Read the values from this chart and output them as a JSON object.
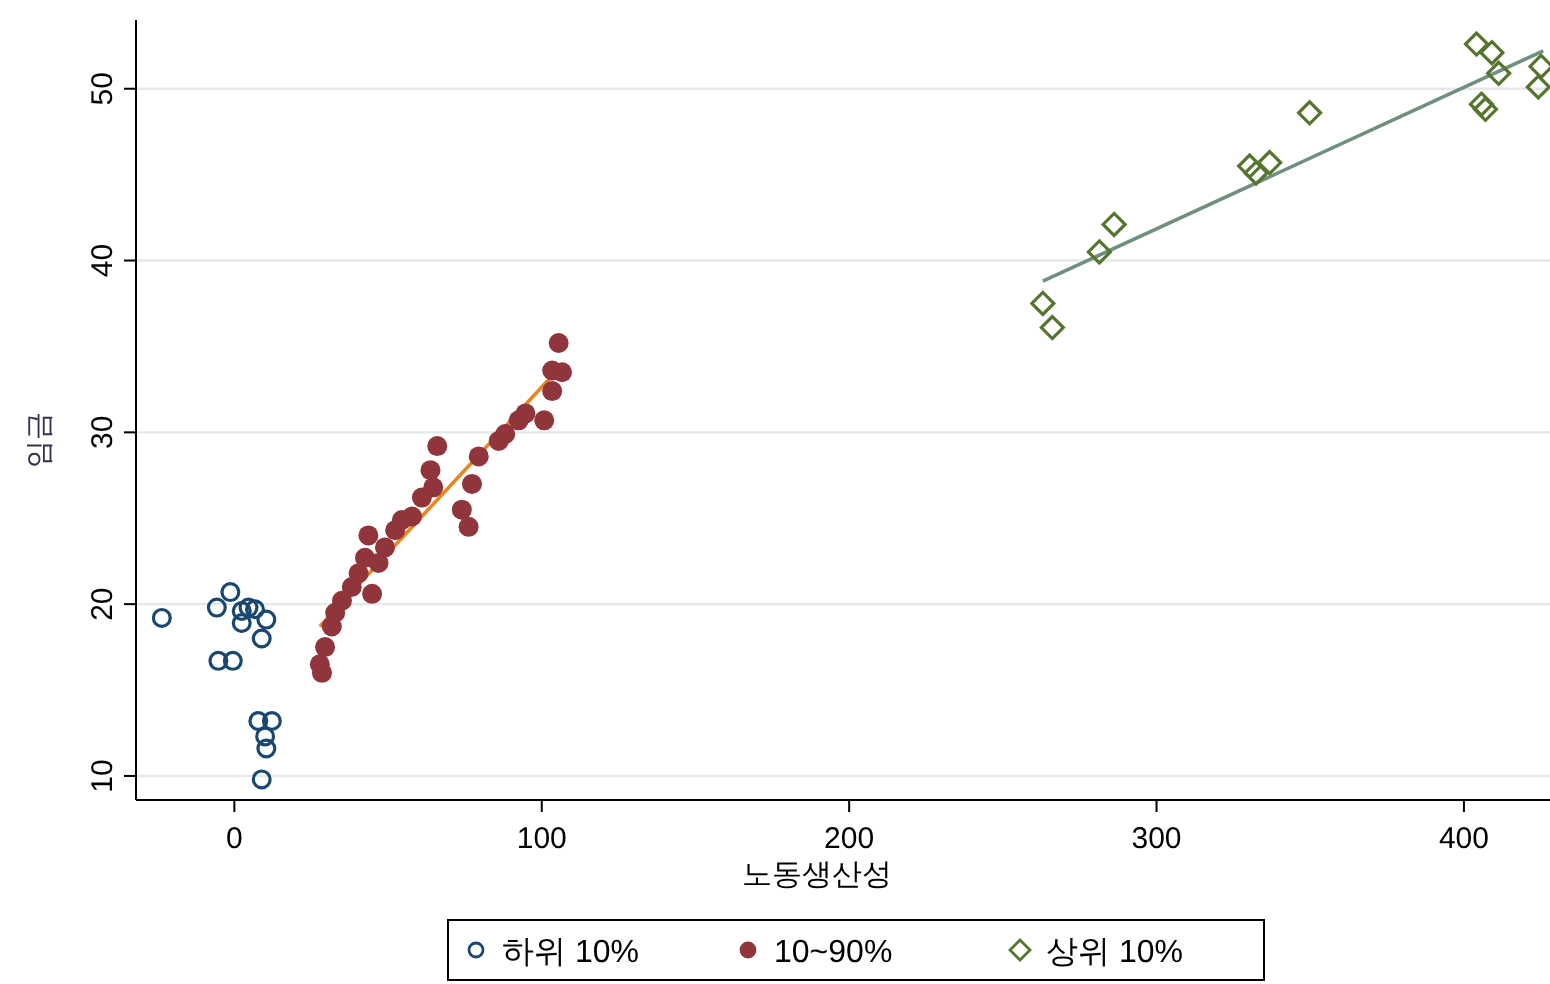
{
  "chart_data": {
    "type": "scatter",
    "xlabel": "노동생산성",
    "ylabel": "임금",
    "xlim": [
      -32,
      428
    ],
    "ylim": [
      8.6,
      54
    ],
    "xticks": [
      0,
      100,
      200,
      300,
      400
    ],
    "yticks": [
      10,
      20,
      30,
      40,
      50
    ],
    "grid": "y",
    "legend": "bottom",
    "series": [
      {
        "name": "하위 10%",
        "color": "#1a476f",
        "marker": "circle",
        "x": [
          -23.6,
          -1.3,
          -5.7,
          2.4,
          4.6,
          6.7,
          2.4,
          10.4,
          8.9,
          -5.2,
          -0.5,
          7.8,
          12.2,
          10.0,
          10.4,
          8.9
        ],
        "values": [
          19.2,
          20.7,
          19.8,
          19.6,
          19.8,
          19.7,
          18.9,
          19.1,
          18.0,
          16.7,
          16.7,
          13.2,
          13.2,
          12.3,
          11.6,
          9.8
        ]
      },
      {
        "name": "10~90%",
        "color": "#90353b",
        "marker": "circle",
        "x": [
          105.5,
          103.4,
          106.6,
          103.4,
          100.8,
          92.5,
          86,
          79.5,
          66,
          63.8,
          64.7,
          61,
          77.3,
          74,
          76.2,
          57.8,
          54.5,
          52.3,
          43.6,
          49,
          42.5,
          46.9,
          40.4,
          38.2,
          44.8,
          35,
          32.8,
          31.7,
          29.5,
          27.8,
          28.5,
          94.7,
          88.1
        ],
        "values": [
          35.2,
          33.6,
          33.5,
          32.4,
          30.7,
          30.7,
          29.5,
          28.6,
          29.2,
          27.8,
          26.8,
          26.2,
          27.0,
          25.5,
          24.5,
          25.1,
          24.9,
          24.3,
          24.0,
          23.3,
          22.7,
          22.4,
          21.8,
          21.0,
          20.6,
          20.2,
          19.5,
          18.7,
          17.5,
          16.5,
          16.0,
          31.1,
          29.9
        ]
      },
      {
        "name": "상위 10%",
        "color": "#55752f",
        "marker": "diamond",
        "x": [
          263,
          266.1,
          281.4,
          286.2,
          330.3,
          332.4,
          336.8,
          349.8,
          404.1,
          409.1,
          411.3,
          405.7,
          407,
          425.1,
          424.2
        ],
        "values": [
          37.5,
          36.1,
          40.5,
          42.1,
          45.5,
          45.1,
          45.7,
          48.6,
          52.6,
          52.1,
          50.9,
          49.1,
          48.8,
          51.3,
          50.1
        ]
      },
      {
        "type": "line",
        "color": "#e8861f",
        "x": [
          27.8,
          105
        ],
        "values": [
          18.7,
          33.6
        ]
      },
      {
        "type": "line",
        "color": "#6f8f7f",
        "x": [
          263,
          425.8
        ],
        "values": [
          38.8,
          52.2
        ]
      }
    ]
  }
}
